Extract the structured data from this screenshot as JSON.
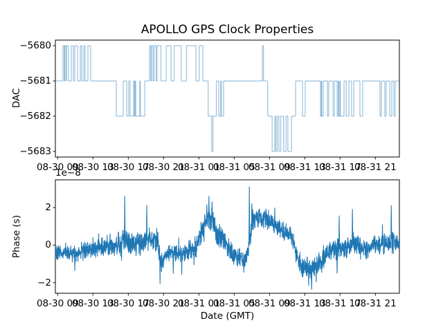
{
  "figure": {
    "title": "APOLLO GPS Clock Properties",
    "background": "#ffffff",
    "line_color": "#1f77b4",
    "spine_color": "#000000"
  },
  "chart_data": [
    {
      "type": "line",
      "subplot": "top",
      "draw_style": "steps-post",
      "ylabel": "DAC",
      "line_color": "#1f77b4",
      "line_alpha": 0.42,
      "x_hours_range": [
        8.74,
        47.72
      ],
      "x_tick_hours": [
        9,
        13,
        17,
        21,
        25,
        29,
        33,
        37,
        41,
        45
      ],
      "x_tick_labels": [
        "08-30 09",
        "08-30 13",
        "08-30 17",
        "08-30 21",
        "08-31 01",
        "08-31 05",
        "08-31 09",
        "08-31 13",
        "08-31 17",
        "08-31 21"
      ],
      "ylim": [
        -5683.16,
        -5679.84
      ],
      "y_ticks": [
        -5680,
        -5681,
        -5682,
        -5683
      ],
      "y_tick_labels": [
        "−5680",
        "−5681",
        "−5682",
        "−5683"
      ],
      "steps_t_value": [
        [
          8.74,
          -5681
        ],
        [
          9.6,
          -5680
        ],
        [
          9.75,
          -5681
        ],
        [
          9.8,
          -5680
        ],
        [
          9.95,
          -5681
        ],
        [
          10.0,
          -5680
        ],
        [
          10.23,
          -5681
        ],
        [
          10.55,
          -5680
        ],
        [
          10.78,
          -5681
        ],
        [
          10.94,
          -5680
        ],
        [
          11.25,
          -5681
        ],
        [
          11.56,
          -5680
        ],
        [
          11.72,
          -5681
        ],
        [
          11.96,
          -5680
        ],
        [
          12.1,
          -5681
        ],
        [
          12.43,
          -5680
        ],
        [
          12.74,
          -5681
        ],
        [
          15.64,
          -5682
        ],
        [
          16.43,
          -5681
        ],
        [
          16.82,
          -5682
        ],
        [
          17.05,
          -5681
        ],
        [
          17.2,
          -5682
        ],
        [
          17.6,
          -5681
        ],
        [
          17.68,
          -5682
        ],
        [
          17.78,
          -5681
        ],
        [
          17.85,
          -5682
        ],
        [
          18.3,
          -5681
        ],
        [
          18.36,
          -5682
        ],
        [
          18.86,
          -5681
        ],
        [
          19.4,
          -5680
        ],
        [
          19.55,
          -5681
        ],
        [
          19.62,
          -5680
        ],
        [
          19.8,
          -5681
        ],
        [
          19.92,
          -5680
        ],
        [
          20.15,
          -5681
        ],
        [
          20.25,
          -5680
        ],
        [
          20.7,
          -5681
        ],
        [
          21.3,
          -5680
        ],
        [
          21.85,
          -5681
        ],
        [
          22.2,
          -5680
        ],
        [
          23.0,
          -5681
        ],
        [
          23.6,
          -5680
        ],
        [
          24.66,
          -5681
        ],
        [
          25.05,
          -5680
        ],
        [
          25.45,
          -5681
        ],
        [
          26.05,
          -5682
        ],
        [
          26.45,
          -5683
        ],
        [
          26.6,
          -5682
        ],
        [
          26.98,
          -5681
        ],
        [
          27.25,
          -5682
        ],
        [
          27.46,
          -5681
        ],
        [
          27.55,
          -5682
        ],
        [
          27.8,
          -5681
        ],
        [
          32.2,
          -5680
        ],
        [
          32.32,
          -5681
        ],
        [
          32.8,
          -5682
        ],
        [
          33.3,
          -5683
        ],
        [
          33.6,
          -5682
        ],
        [
          33.72,
          -5683
        ],
        [
          33.88,
          -5682
        ],
        [
          34.07,
          -5683
        ],
        [
          34.28,
          -5682
        ],
        [
          34.6,
          -5683
        ],
        [
          34.88,
          -5682
        ],
        [
          35.08,
          -5683
        ],
        [
          35.5,
          -5682
        ],
        [
          35.96,
          -5681
        ],
        [
          36.75,
          -5682
        ],
        [
          37.05,
          -5681
        ],
        [
          38.78,
          -5682
        ],
        [
          38.88,
          -5681
        ],
        [
          38.92,
          -5682
        ],
        [
          39.1,
          -5681
        ],
        [
          39.57,
          -5682
        ],
        [
          39.72,
          -5681
        ],
        [
          40.2,
          -5682
        ],
        [
          40.36,
          -5681
        ],
        [
          40.67,
          -5682
        ],
        [
          40.8,
          -5681
        ],
        [
          40.84,
          -5682
        ],
        [
          40.98,
          -5681
        ],
        [
          41.02,
          -5682
        ],
        [
          41.45,
          -5681
        ],
        [
          41.7,
          -5682
        ],
        [
          42.0,
          -5681
        ],
        [
          42.3,
          -5682
        ],
        [
          42.55,
          -5681
        ],
        [
          43.25,
          -5682
        ],
        [
          43.56,
          -5681
        ],
        [
          45.52,
          -5682
        ],
        [
          45.68,
          -5681
        ],
        [
          46.07,
          -5682
        ],
        [
          46.22,
          -5681
        ],
        [
          46.62,
          -5682
        ],
        [
          46.86,
          -5681
        ],
        [
          47.1,
          -5682
        ],
        [
          47.25,
          -5681
        ]
      ]
    },
    {
      "type": "line",
      "subplot": "bottom",
      "ylabel": "Phase (s)",
      "xlabel": "Date (GMT)",
      "y_offset_text": "1e−8",
      "y_unit_scale": 1e-08,
      "line_color": "#1f77b4",
      "x_hours_range": [
        8.74,
        47.72
      ],
      "x_tick_hours": [
        9,
        13,
        17,
        21,
        25,
        29,
        33,
        37,
        41,
        45
      ],
      "x_tick_labels": [
        "08-30 09",
        "08-30 13",
        "08-30 17",
        "08-30 21",
        "08-31 01",
        "08-31 05",
        "08-31 09",
        "08-31 13",
        "08-31 17",
        "08-31 21"
      ],
      "ylim": [
        -2.56,
        3.47
      ],
      "y_ticks": [
        2,
        0,
        -2
      ],
      "y_tick_labels": [
        "2",
        "0",
        "−2"
      ],
      "noise_seed": 20,
      "sample_step_hours": 0.02,
      "envelope_t_mean_amp": [
        [
          8.74,
          -0.45,
          0.28
        ],
        [
          10.9,
          -0.42,
          0.3
        ],
        [
          13.4,
          -0.12,
          0.35
        ],
        [
          15.4,
          0.05,
          0.42
        ],
        [
          16.6,
          0.18,
          0.45
        ],
        [
          18.2,
          0.1,
          0.42
        ],
        [
          19.5,
          0.25,
          0.4
        ],
        [
          20.3,
          0.3,
          0.38
        ],
        [
          20.75,
          -1.0,
          0.35
        ],
        [
          21.3,
          -0.4,
          0.3
        ],
        [
          23.6,
          -0.35,
          0.35
        ],
        [
          24.7,
          -0.15,
          0.4
        ],
        [
          25.6,
          1.1,
          0.45
        ],
        [
          26.2,
          1.55,
          0.5
        ],
        [
          26.9,
          0.75,
          0.45
        ],
        [
          28.0,
          0.1,
          0.4
        ],
        [
          29.1,
          -0.55,
          0.35
        ],
        [
          30.1,
          -0.75,
          0.35
        ],
        [
          30.55,
          -0.4,
          0.3
        ],
        [
          31.1,
          1.35,
          0.4
        ],
        [
          32.7,
          1.4,
          0.38
        ],
        [
          34.2,
          0.9,
          0.35
        ],
        [
          35.4,
          0.55,
          0.35
        ],
        [
          36.0,
          -0.45,
          0.35
        ],
        [
          36.6,
          -1.1,
          0.38
        ],
        [
          37.8,
          -1.3,
          0.4
        ],
        [
          39.0,
          -0.85,
          0.38
        ],
        [
          39.5,
          -0.35,
          0.35
        ],
        [
          40.9,
          -0.2,
          0.4
        ],
        [
          42.5,
          0.0,
          0.42
        ],
        [
          44.0,
          -0.25,
          0.35
        ],
        [
          45.2,
          0.05,
          0.4
        ],
        [
          46.9,
          0.15,
          0.4
        ],
        [
          47.72,
          0.1,
          0.3
        ]
      ],
      "spikes_t_value": [
        [
          10.94,
          -1.35
        ],
        [
          16.6,
          2.6
        ],
        [
          19.1,
          2.1
        ],
        [
          20.6,
          -2.05
        ],
        [
          22.1,
          -1.5
        ],
        [
          23.05,
          -1.55
        ],
        [
          25.9,
          2.15
        ],
        [
          26.15,
          2.6
        ],
        [
          26.5,
          2.3
        ],
        [
          30.08,
          -1.45
        ],
        [
          30.72,
          3.1
        ],
        [
          31.0,
          2.2
        ],
        [
          37.77,
          -2.35
        ],
        [
          38.3,
          -1.95
        ],
        [
          40.9,
          1.55
        ],
        [
          42.4,
          1.9
        ],
        [
          46.8,
          2.1
        ]
      ]
    }
  ]
}
